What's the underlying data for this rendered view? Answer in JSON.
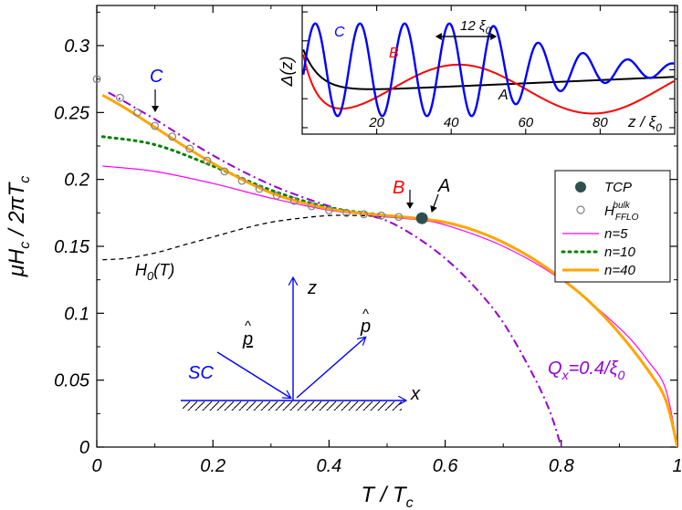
{
  "chart_data": [
    {
      "type": "line",
      "title": "",
      "xlabel": "T / T",
      "xlabel_sub": "c",
      "ylabel": "μH",
      "ylabel_sub": "c",
      "ylabel_rest": " / 2πT",
      "ylabel_sub2": "c",
      "xlim": [
        0,
        1
      ],
      "ylim": [
        0,
        0.33
      ],
      "x_ticks": [
        {
          "v": 0,
          "label": "0"
        },
        {
          "v": 0.2,
          "label": "0.2"
        },
        {
          "v": 0.4,
          "label": "0.4"
        },
        {
          "v": 0.6,
          "label": "0.6"
        },
        {
          "v": 0.8,
          "label": "0.8"
        },
        {
          "v": 1,
          "label": "1"
        }
      ],
      "y_ticks": [
        {
          "v": 0,
          "label": "0"
        },
        {
          "v": 0.05,
          "label": "0.05"
        },
        {
          "v": 0.1,
          "label": "0.1"
        },
        {
          "v": 0.15,
          "label": "0.15"
        },
        {
          "v": 0.2,
          "label": "0.2"
        },
        {
          "v": 0.25,
          "label": "0.25"
        },
        {
          "v": 0.3,
          "label": "0.3"
        }
      ],
      "grid": false,
      "legend_position": "right",
      "legend": [
        {
          "label": "TCP",
          "marker": "filled-circle",
          "color": "#2f4f4f"
        },
        {
          "label": "H",
          "label_sub": "FFLO",
          "label_sup": "bulk",
          "marker": "open-circle",
          "color": "#808080"
        },
        {
          "label": "n=5",
          "line": "solid-thin",
          "color": "#ff00ff"
        },
        {
          "label": "n=10",
          "line": "dotted",
          "color": "#008000"
        },
        {
          "label": "n=40",
          "line": "solid-thick",
          "color": "#ffa500"
        }
      ],
      "series": [
        {
          "name": "n=5",
          "color": "#ff00ff",
          "x": [
            0.01,
            0.1,
            0.2,
            0.3,
            0.4,
            0.5,
            0.55,
            0.6,
            0.7,
            0.8,
            0.9,
            0.95,
            0.98,
            1.0
          ],
          "y": [
            0.21,
            0.206,
            0.197,
            0.186,
            0.177,
            0.172,
            0.17,
            0.166,
            0.15,
            0.125,
            0.089,
            0.064,
            0.043,
            0
          ]
        },
        {
          "name": "n=10",
          "color": "#008000",
          "x": [
            0.01,
            0.1,
            0.2,
            0.3,
            0.4,
            0.5,
            0.52
          ],
          "y": [
            0.232,
            0.226,
            0.21,
            0.192,
            0.179,
            0.173,
            0.172
          ]
        },
        {
          "name": "n=40",
          "color": "#ffa500",
          "x": [
            0.01,
            0.05,
            0.1,
            0.15,
            0.2,
            0.25,
            0.3,
            0.35,
            0.4,
            0.45,
            0.5,
            0.55,
            0.6,
            0.65,
            0.7,
            0.75,
            0.8,
            0.85,
            0.9,
            0.95,
            0.98,
            1.0
          ],
          "y": [
            0.263,
            0.253,
            0.239,
            0.225,
            0.212,
            0.2,
            0.19,
            0.183,
            0.178,
            0.175,
            0.173,
            0.171,
            0.168,
            0.162,
            0.153,
            0.141,
            0.126,
            0.108,
            0.085,
            0.057,
            0.035,
            0
          ]
        },
        {
          "name": "H_FFLO^bulk",
          "color": "#808080",
          "x": [
            0.0,
            0.04,
            0.07,
            0.1,
            0.13,
            0.16,
            0.19,
            0.22,
            0.25,
            0.28,
            0.31,
            0.34,
            0.37,
            0.4,
            0.43,
            0.46,
            0.49,
            0.52
          ],
          "y": [
            0.275,
            0.261,
            0.25,
            0.24,
            0.232,
            0.223,
            0.214,
            0.206,
            0.199,
            0.193,
            0.188,
            0.184,
            0.18,
            0.177,
            0.175,
            0.174,
            0.173,
            0.172
          ]
        },
        {
          "name": "H_0(T)",
          "color": "#000000",
          "x": [
            0.01,
            0.05,
            0.1,
            0.15,
            0.2,
            0.25,
            0.3,
            0.35,
            0.4,
            0.45,
            0.5,
            0.55
          ],
          "y": [
            0.14,
            0.141,
            0.145,
            0.151,
            0.157,
            0.163,
            0.168,
            0.171,
            0.173,
            0.173,
            0.172,
            0.171
          ]
        },
        {
          "name": "Q_x=0.4/ξ_0",
          "color": "#9400d3",
          "x": [
            0.02,
            0.1,
            0.2,
            0.3,
            0.4,
            0.45,
            0.5,
            0.55,
            0.6,
            0.65,
            0.7,
            0.75,
            0.78,
            0.8
          ],
          "y": [
            0.265,
            0.245,
            0.218,
            0.196,
            0.18,
            0.175,
            0.169,
            0.157,
            0.141,
            0.12,
            0.093,
            0.055,
            0.027,
            0
          ]
        },
        {
          "name": "TCP",
          "color": "#2f4f4f",
          "x": [
            0.56
          ],
          "y": [
            0.171
          ]
        }
      ],
      "annotations": [
        {
          "text": "C",
          "color": "#0000ff",
          "arrow_to": [
            0.1,
            0.24
          ]
        },
        {
          "text": "B",
          "color": "#ff0000",
          "arrow_to": [
            0.545,
            0.174
          ]
        },
        {
          "text": "A",
          "color": "#000000",
          "arrow_to": [
            0.58,
            0.174
          ]
        },
        {
          "text": "H",
          "text_sub": "0",
          "text_rest": "(T)",
          "color": "#000000"
        },
        {
          "text": "Q",
          "text_sub": "x",
          "text_rest": "=0.4/ξ",
          "text_sub2": "0",
          "color": "#9400d3"
        }
      ],
      "diagram": {
        "labels": {
          "sc": "SC",
          "x": "x",
          "z": "z",
          "p_in": "p",
          "p_out": "p",
          "hat": "^"
        },
        "color": "#0000ff"
      }
    },
    {
      "type": "line",
      "title": "",
      "ylabel": "Δ(z)",
      "xlabel": "z / ξ",
      "xlabel_sub": "0",
      "xlim": [
        0,
        100
      ],
      "ylim": [
        -1,
        1
      ],
      "x_ticks": [
        {
          "v": 20,
          "label": "20"
        },
        {
          "v": 40,
          "label": "40"
        },
        {
          "v": 60,
          "label": "60"
        },
        {
          "v": 80,
          "label": "80"
        }
      ],
      "annotation": {
        "text": "12 ξ",
        "text_sub": "0",
        "from": 36,
        "to": 52
      },
      "series": [
        {
          "name": "A",
          "color": "#000000",
          "type": "function",
          "params": {
            "a": 0.36,
            "amp": 0.72,
            "len": 4.5,
            "slope": 0.0025
          }
        },
        {
          "name": "B",
          "color": "#ff0000",
          "type": "function",
          "params": {
            "base": -0.3,
            "amp": 0.38,
            "period": 72,
            "center": 42,
            "edge_amp": 0.95,
            "edge_len": 3.5
          }
        },
        {
          "name": "C",
          "color": "#0000ff",
          "type": "function",
          "params": {
            "amp": 0.72,
            "period": 12,
            "phase": 3.5,
            "decay_start": 50,
            "decay_len": 25
          }
        }
      ]
    }
  ]
}
